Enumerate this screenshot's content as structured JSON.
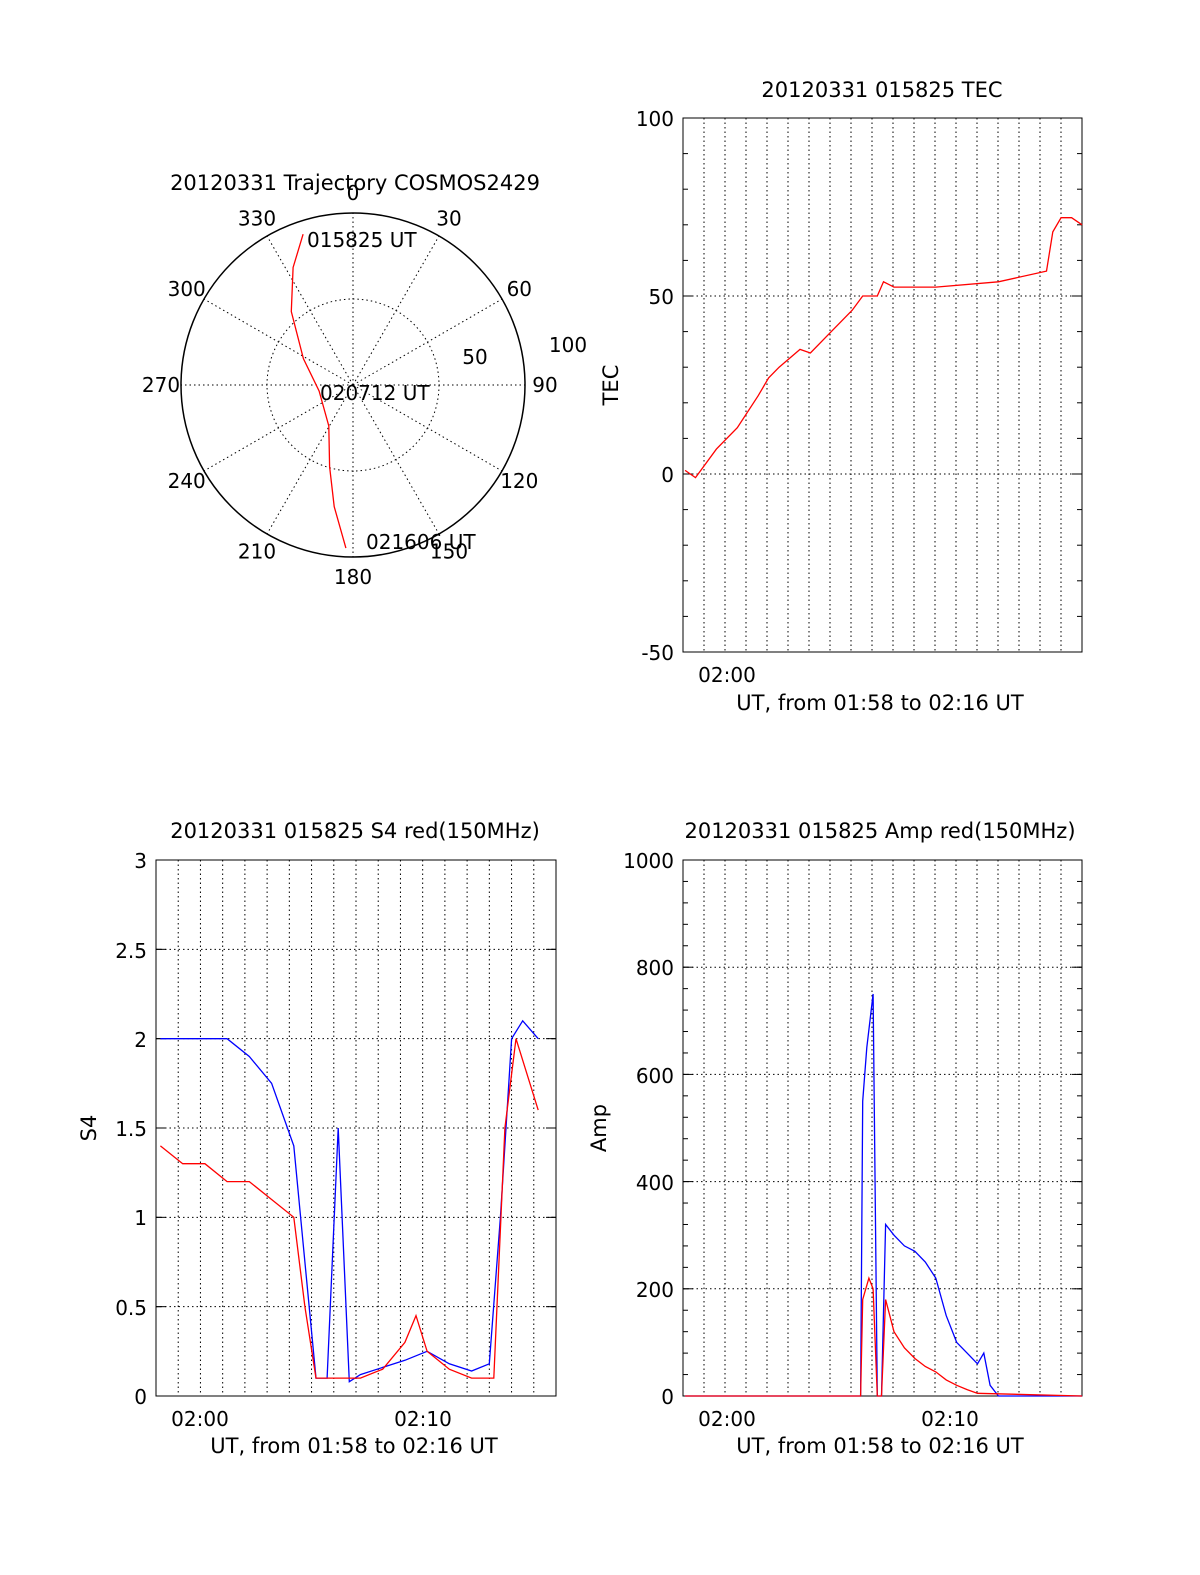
{
  "colors": {
    "red": "#ff0000",
    "blue": "#0000ff",
    "axis": "#000000",
    "grid": "#000000"
  },
  "chart_data": [
    {
      "id": "polar",
      "type": "polar-trajectory",
      "title": "20120331 Trajectory COSMOS2429",
      "azimuth_labels": [
        "0",
        "30",
        "60",
        "90",
        "120",
        "150",
        "180",
        "210",
        "240",
        "270",
        "300",
        "330"
      ],
      "radial_ring_labels": [
        "50",
        "100"
      ],
      "point_labels": {
        "start": "015825 UT",
        "mid": "020712 UT",
        "end": "021606 UT"
      },
      "trajectory": {
        "azimuth_deg": [
          341.7,
          333.0,
          320.0,
          298.0,
          260.0,
          210.5,
          196.0,
          188.8,
          182.5
        ],
        "zenith_angle": [
          83.1,
          69.0,
          50.2,
          29.4,
          18.0,
          24.9,
          44.5,
          64.4,
          85.4
        ]
      }
    },
    {
      "id": "tec",
      "type": "line",
      "title": "20120331 015825 TEC",
      "xlabel": "UT, from 01:58 to 02:16 UT",
      "ylabel": "TEC",
      "x_tick_labels": [
        "02:00"
      ],
      "y_tick_labels": [
        "100",
        "50",
        "0",
        "-50"
      ],
      "ylim": [
        -50,
        100
      ],
      "series": [
        {
          "color": "red",
          "x": [
            0.0,
            0.5,
            1.5,
            2.5,
            3.5,
            4.0,
            4.5,
            5.5,
            6.0,
            7.0,
            8.0,
            8.5,
            9.2,
            9.5,
            10.0,
            12.0,
            15.0,
            17.3,
            17.6,
            18.0,
            18.5,
            19.0
          ],
          "y": [
            1,
            -1,
            7,
            13,
            22,
            27,
            30,
            35,
            34,
            40,
            46,
            50,
            50,
            54,
            52.5,
            52.5,
            54,
            57,
            68,
            72,
            72,
            70
          ]
        }
      ]
    },
    {
      "id": "s4",
      "type": "line",
      "title": "20120331 015825 S4 red(150MHz)",
      "xlabel": "UT, from 01:58 to 02:16 UT",
      "ylabel": "S4",
      "x_tick_labels": [
        "02:00",
        "02:10"
      ],
      "y_tick_labels": [
        "3",
        "2.5",
        "2",
        "1.5",
        "1",
        "0.5",
        "0"
      ],
      "ylim": [
        0,
        3
      ],
      "series": [
        {
          "color": "blue",
          "x": [
            0,
            1,
            2,
            3,
            4,
            5,
            6,
            7,
            7.5,
            8,
            8.5,
            9,
            10,
            11,
            12,
            13,
            14,
            14.8,
            15.3,
            15.8,
            16.3,
            17
          ],
          "y": [
            2.0,
            2.0,
            2.0,
            2.0,
            1.9,
            1.75,
            1.4,
            0.1,
            0.1,
            1.5,
            0.08,
            0.12,
            0.16,
            0.2,
            0.25,
            0.18,
            0.14,
            0.18,
            1.0,
            2.0,
            2.1,
            2.0
          ]
        },
        {
          "color": "red",
          "x": [
            0,
            1,
            2,
            3,
            4,
            5,
            6,
            6.5,
            7,
            7.5,
            8,
            9,
            10,
            11,
            11.5,
            12,
            13,
            14,
            14.5,
            15,
            15.5,
            16,
            17
          ],
          "y": [
            1.4,
            1.3,
            1.3,
            1.2,
            1.2,
            1.1,
            1.0,
            0.5,
            0.1,
            0.1,
            0.1,
            0.1,
            0.15,
            0.3,
            0.45,
            0.25,
            0.15,
            0.1,
            0.1,
            0.1,
            1.5,
            2.0,
            1.6
          ]
        }
      ]
    },
    {
      "id": "amp",
      "type": "line",
      "title": "20120331 015825 Amp red(150MHz)",
      "xlabel": "UT, from 01:58 to 02:16 UT",
      "ylabel": "Amp",
      "x_tick_labels": [
        "02:00",
        "02:10"
      ],
      "y_tick_labels": [
        "1000",
        "800",
        "600",
        "400",
        "200",
        "0"
      ],
      "ylim": [
        0,
        1000
      ],
      "series": [
        {
          "color": "blue",
          "x": [
            0,
            8.4,
            8.5,
            8.7,
            9.0,
            9.2,
            9.4,
            9.6,
            10.0,
            10.5,
            11.0,
            11.5,
            12.0,
            12.5,
            13.0,
            13.5,
            14.0,
            14.3,
            14.6,
            15.0,
            19.0
          ],
          "y": [
            0,
            0,
            550,
            650,
            750,
            0,
            0,
            320,
            300,
            280,
            270,
            250,
            220,
            150,
            100,
            80,
            60,
            80,
            20,
            0,
            0
          ]
        },
        {
          "color": "red",
          "x": [
            0,
            8.4,
            8.5,
            8.8,
            9.0,
            9.2,
            9.4,
            9.6,
            10.0,
            10.5,
            11.0,
            11.5,
            12.0,
            12.5,
            13.0,
            13.5,
            14.0,
            19.0
          ],
          "y": [
            0,
            0,
            180,
            220,
            200,
            0,
            0,
            180,
            120,
            90,
            70,
            55,
            45,
            30,
            20,
            12,
            5,
            0
          ]
        }
      ]
    }
  ]
}
